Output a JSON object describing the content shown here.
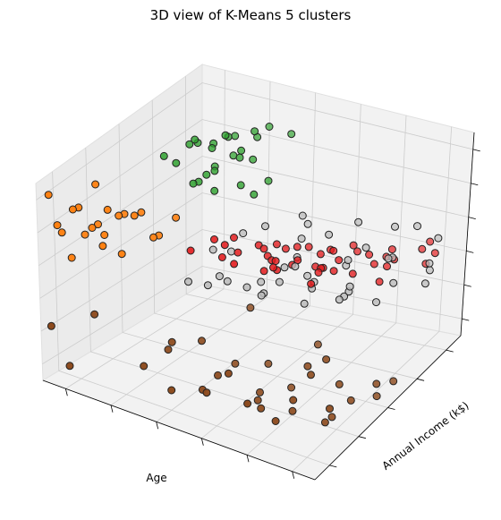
{
  "chart_data": {
    "type": "scatter",
    "projection": "3d",
    "title": "3D view of K-Means 5 clusters",
    "xlabel": "Age",
    "ylabel": "Annual Income (k$)",
    "zlabel": "",
    "xlim": [
      18,
      70
    ],
    "ylim": [
      15,
      137
    ],
    "zlim": [
      1,
      99
    ],
    "grid": true,
    "tick_labels_shown": false,
    "series": [
      {
        "color": "#ff7f0e",
        "points": [
          [
            19,
            20,
            92
          ],
          [
            21,
            18,
            80
          ],
          [
            23,
            22,
            88
          ],
          [
            22,
            30,
            84
          ],
          [
            25,
            28,
            78
          ],
          [
            20,
            25,
            72
          ],
          [
            24,
            35,
            95
          ],
          [
            27,
            40,
            80
          ],
          [
            30,
            45,
            82
          ],
          [
            26,
            33,
            73
          ],
          [
            29,
            20,
            77
          ],
          [
            32,
            50,
            70
          ],
          [
            21,
            38,
            66
          ],
          [
            28,
            28,
            90
          ],
          [
            34,
            55,
            78
          ],
          [
            23,
            40,
            72
          ],
          [
            31,
            36,
            86
          ],
          [
            26,
            48,
            76
          ],
          [
            22,
            24,
            62
          ],
          [
            33,
            42,
            74
          ],
          [
            30,
            30,
            69
          ]
        ]
      },
      {
        "color": "#2ca02c",
        "points": [
          [
            28,
            70,
            95
          ],
          [
            30,
            85,
            97
          ],
          [
            32,
            90,
            92
          ],
          [
            35,
            100,
            88
          ],
          [
            30,
            110,
            86
          ],
          [
            33,
            120,
            83
          ],
          [
            29,
            75,
            90
          ],
          [
            31,
            95,
            91
          ],
          [
            36,
            105,
            82
          ],
          [
            34,
            78,
            87
          ],
          [
            38,
            88,
            80
          ],
          [
            30,
            115,
            84
          ],
          [
            32,
            100,
            93
          ],
          [
            35,
            80,
            79
          ],
          [
            37,
            130,
            82
          ],
          [
            28,
            95,
            89
          ],
          [
            33,
            72,
            85
          ],
          [
            40,
            90,
            76
          ],
          [
            31,
            110,
            78
          ],
          [
            34,
            125,
            86
          ],
          [
            39,
            105,
            74
          ],
          [
            29,
            85,
            94
          ],
          [
            36,
            95,
            88
          ],
          [
            32,
            80,
            81
          ],
          [
            30,
            100,
            77
          ],
          [
            35,
            110,
            92
          ],
          [
            33,
            88,
            83
          ]
        ]
      },
      {
        "color": "#e31a1c",
        "points": [
          [
            40,
            60,
            70
          ],
          [
            45,
            55,
            65
          ],
          [
            50,
            65,
            62
          ],
          [
            42,
            70,
            60
          ],
          [
            48,
            75,
            58
          ],
          [
            55,
            80,
            55
          ],
          [
            44,
            85,
            52
          ],
          [
            52,
            90,
            50
          ],
          [
            58,
            95,
            48
          ],
          [
            46,
            100,
            50
          ],
          [
            50,
            110,
            46
          ],
          [
            54,
            115,
            45
          ],
          [
            60,
            120,
            42
          ],
          [
            47,
            105,
            48
          ],
          [
            56,
            88,
            52
          ],
          [
            62,
            100,
            44
          ],
          [
            49,
            72,
            56
          ],
          [
            53,
            92,
            49
          ],
          [
            41,
            64,
            66
          ],
          [
            45,
            78,
            60
          ],
          [
            59,
            108,
            46
          ],
          [
            43,
            82,
            58
          ],
          [
            65,
            125,
            40
          ],
          [
            51,
            98,
            51
          ],
          [
            57,
            112,
            47
          ],
          [
            63,
            130,
            43
          ],
          [
            48,
            66,
            58
          ],
          [
            55,
            96,
            52
          ],
          [
            42,
            58,
            64
          ],
          [
            60,
            118,
            48
          ],
          [
            44,
            92,
            54
          ],
          [
            52,
            104,
            50
          ],
          [
            66,
            128,
            44
          ],
          [
            38,
            50,
            68
          ],
          [
            50,
            84,
            55
          ],
          [
            47,
            76,
            57
          ],
          [
            58,
            122,
            41
          ],
          [
            61,
            110,
            45
          ],
          [
            54,
            86,
            53
          ],
          [
            45,
            95,
            51
          ],
          [
            40,
            75,
            63
          ],
          [
            56,
            70,
            56
          ],
          [
            64,
            132,
            46
          ],
          [
            48,
            88,
            49
          ],
          [
            52,
            120,
            44
          ]
        ]
      },
      {
        "color": "#bbbbbb",
        "points": [
          [
            35,
            60,
            45
          ],
          [
            40,
            55,
            50
          ],
          [
            45,
            65,
            48
          ],
          [
            50,
            70,
            52
          ],
          [
            55,
            75,
            50
          ],
          [
            60,
            80,
            47
          ],
          [
            65,
            85,
            45
          ],
          [
            38,
            90,
            56
          ],
          [
            48,
            95,
            58
          ],
          [
            52,
            100,
            60
          ],
          [
            58,
            105,
            55
          ],
          [
            62,
            110,
            50
          ],
          [
            68,
            115,
            48
          ],
          [
            42,
            120,
            52
          ],
          [
            47,
            70,
            44
          ],
          [
            53,
            85,
            46
          ],
          [
            57,
            95,
            54
          ],
          [
            63,
            125,
            57
          ],
          [
            44,
            80,
            42
          ],
          [
            49,
            60,
            50
          ],
          [
            67,
            90,
            53
          ],
          [
            36,
            75,
            54
          ],
          [
            56,
            65,
            49
          ],
          [
            61,
            72,
            51
          ],
          [
            46,
            100,
            45
          ],
          [
            54,
            115,
            59
          ],
          [
            66,
            130,
            50
          ],
          [
            39,
            68,
            47
          ],
          [
            51,
            78,
            56
          ],
          [
            59,
            88,
            44
          ],
          [
            43,
            58,
            53
          ],
          [
            64,
            98,
            58
          ],
          [
            69,
            108,
            43
          ],
          [
            37,
            85,
            49
          ],
          [
            50,
            92,
            43
          ],
          [
            58,
            128,
            52
          ],
          [
            45,
            112,
            54
          ],
          [
            62,
            76,
            56
          ],
          [
            55,
            102,
            46
          ],
          [
            41,
            95,
            59
          ],
          [
            67,
            120,
            41
          ],
          [
            48,
            82,
            51
          ]
        ]
      },
      {
        "color": "#8c4a1d",
        "points": [
          [
            20,
            15,
            30
          ],
          [
            22,
            20,
            10
          ],
          [
            35,
            25,
            20
          ],
          [
            45,
            30,
            15
          ],
          [
            55,
            35,
            12
          ],
          [
            60,
            40,
            18
          ],
          [
            65,
            45,
            8
          ],
          [
            40,
            50,
            25
          ],
          [
            50,
            55,
            5
          ],
          [
            58,
            60,
            22
          ],
          [
            63,
            65,
            14
          ],
          [
            48,
            70,
            10
          ],
          [
            68,
            75,
            6
          ],
          [
            42,
            80,
            28
          ],
          [
            54,
            85,
            16
          ],
          [
            59,
            30,
            12
          ],
          [
            67,
            40,
            20
          ],
          [
            38,
            35,
            30
          ],
          [
            52,
            45,
            8
          ],
          [
            61,
            50,
            26
          ],
          [
            47,
            25,
            18
          ],
          [
            64,
            55,
            4
          ],
          [
            56,
            20,
            24
          ],
          [
            44,
            60,
            12
          ],
          [
            69,
            70,
            16
          ],
          [
            36,
            40,
            22
          ],
          [
            50,
            30,
            28
          ],
          [
            66,
            62,
            10
          ],
          [
            25,
            28,
            35
          ],
          [
            58,
            48,
            6
          ],
          [
            46,
            38,
            19
          ],
          [
            62,
            58,
            30
          ],
          [
            53,
            68,
            3
          ],
          [
            70,
            80,
            12
          ],
          [
            41,
            22,
            15
          ]
        ]
      }
    ]
  }
}
